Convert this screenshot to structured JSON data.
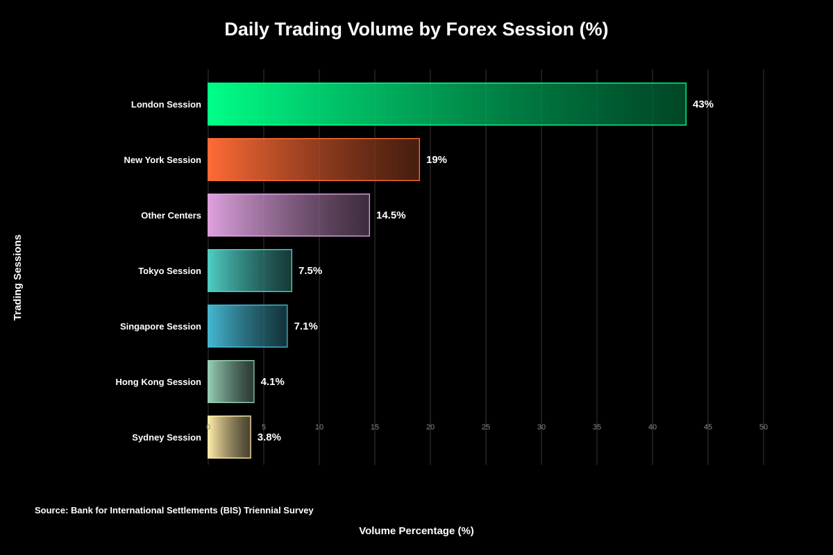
{
  "chart_data": {
    "type": "bar",
    "orientation": "horizontal",
    "title": "Daily Trading Volume by Forex Session (%)",
    "xlabel": "Volume Percentage (%)",
    "ylabel": "Trading Sessions",
    "xlim": [
      0,
      50
    ],
    "xticks": [
      0,
      5,
      10,
      15,
      20,
      25,
      30,
      35,
      40,
      45,
      50
    ],
    "grid": "vertical",
    "legend": "none",
    "categories": [
      "London Session",
      "New York Session",
      "Other Centers",
      "Tokyo Session",
      "Singapore Session",
      "Hong Kong Session",
      "Sydney Session"
    ],
    "values": [
      43,
      19,
      14.5,
      7.5,
      7.1,
      4.1,
      3.8
    ],
    "value_labels": [
      "43%",
      "19%",
      "14.5%",
      "7.5%",
      "7.1%",
      "4.1%",
      "3.8%"
    ],
    "colors": [
      "#00ff88",
      "#ff6b35",
      "#dda0dd",
      "#4ecdc4",
      "#45b7d1",
      "#96ceb4",
      "#ffeaa7"
    ],
    "source": "Source: Bank for International Settlements (BIS) Triennial Survey"
  }
}
